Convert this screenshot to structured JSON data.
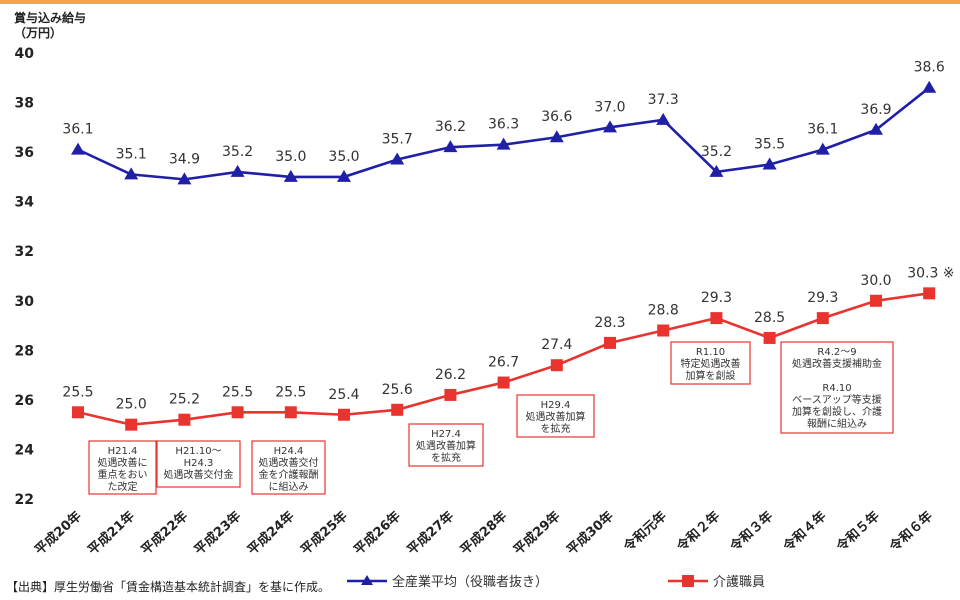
{
  "colors": {
    "top_rule": "#f7a34a",
    "series_all": "#1f1fa8",
    "series_care": "#e8332f"
  },
  "chart_data": {
    "type": "line",
    "ylabel_lines": [
      "賞与込み給与",
      "（万円）"
    ],
    "ylim": [
      22,
      40
    ],
    "yticks": [
      22,
      24,
      26,
      28,
      30,
      32,
      34,
      36,
      38,
      40
    ],
    "categories": [
      "平成20年",
      "平成21年",
      "平成22年",
      "平成23年",
      "平成24年",
      "平成25年",
      "平成26年",
      "平成27年",
      "平成28年",
      "平成29年",
      "平成30年",
      "令和元年",
      "令和２年",
      "令和３年",
      "令和４年",
      "令和５年",
      "令和６年"
    ],
    "series": [
      {
        "name": "全産業平均（役職者抜き）",
        "marker": "triangle",
        "color": "#1f1fa8",
        "values": [
          36.1,
          35.1,
          34.9,
          35.2,
          35.0,
          35.0,
          35.7,
          36.2,
          36.3,
          36.6,
          37.0,
          37.3,
          35.2,
          35.5,
          36.1,
          36.9,
          38.6
        ]
      },
      {
        "name": "介護職員",
        "marker": "square",
        "color": "#e8332f",
        "values": [
          25.5,
          25.0,
          25.2,
          25.5,
          25.5,
          25.4,
          25.6,
          26.2,
          26.7,
          27.4,
          28.3,
          28.8,
          29.3,
          28.5,
          29.3,
          30.0,
          30.3
        ]
      }
    ],
    "last_label_suffix": " ※",
    "grid": false,
    "legend_placement": "bottom"
  },
  "annotations": [
    {
      "lines": [
        "H21.4",
        "処遇改善に",
        "重点をおい",
        "た改定"
      ]
    },
    {
      "lines": [
        "H21.10～",
        "H24.3",
        "処遇改善交付金"
      ]
    },
    {
      "lines": [
        "H24.4",
        "処遇改善交付",
        "金を介護報酬",
        "に組込み"
      ]
    },
    {
      "lines": [
        "H27.4",
        "処遇改善加算",
        "を拡充"
      ]
    },
    {
      "lines": [
        "H29.4",
        "処遇改善加算",
        "を拡充"
      ]
    },
    {
      "lines": [
        "R1.10",
        "特定処遇改善",
        "加算を創設"
      ]
    },
    {
      "lines": [
        "R4.2～9",
        "処遇改善支援補助金",
        "",
        "R4.10",
        "ベースアップ等支援",
        "加算を創設し、介護",
        "報酬に組込み"
      ]
    }
  ],
  "footer": {
    "source": "【出典】厚生労働省「賃金構造基本統計調査」を基に作成。"
  }
}
